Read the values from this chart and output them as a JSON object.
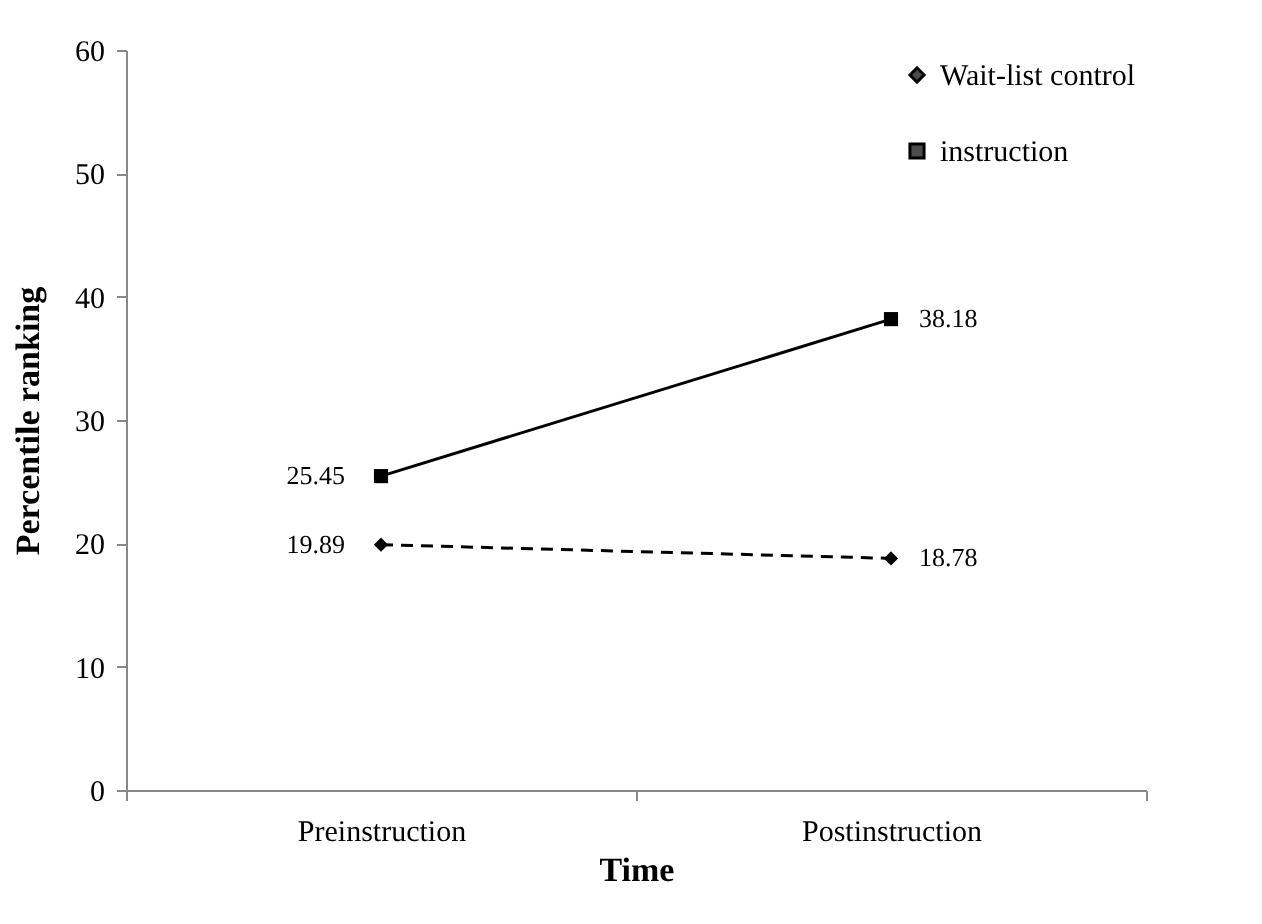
{
  "chart_data": {
    "type": "line",
    "xlabel": "Time",
    "ylabel": "Percentile ranking",
    "categories": [
      "Preinstruction",
      "Postinstruction"
    ],
    "series": [
      {
        "name": "Wait-list control",
        "color": "#000000",
        "marker": "diamond",
        "line_style": "dashed",
        "values": [
          19.89,
          18.78
        ]
      },
      {
        "name": "instruction",
        "color": "#000000",
        "marker": "square",
        "line_style": "solid",
        "values": [
          25.45,
          38.18
        ]
      }
    ],
    "ylim": [
      0,
      60
    ],
    "yticks": [
      0,
      10,
      20,
      30,
      40,
      50,
      60
    ],
    "grid": false,
    "legend": "top right",
    "data_labels": true
  }
}
